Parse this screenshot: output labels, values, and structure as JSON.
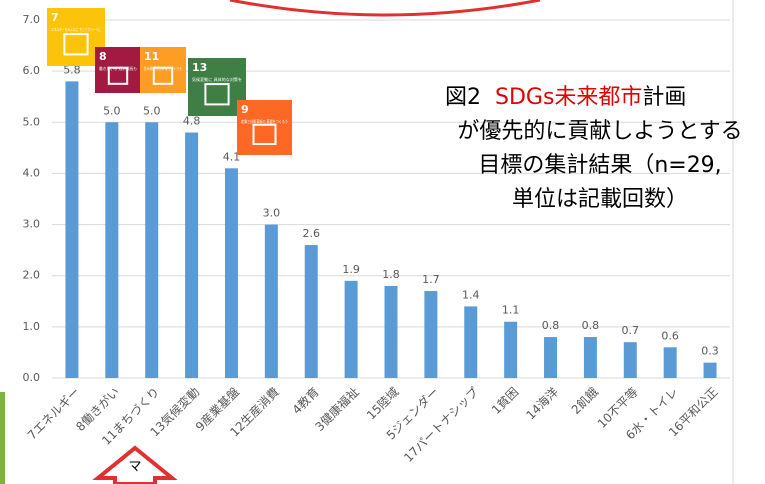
{
  "chart_data": {
    "type": "bar",
    "title": {
      "prefix": "図2",
      "highlight": "SDGs未来都市",
      "suffix": "計画",
      "lines": [
        "が優先的に貢献しようとする",
        "目標の集計結果（n=29,",
        "単位は記載回数）"
      ]
    },
    "categories": [
      "7エネルギー",
      "8働きがい",
      "11まちづくり",
      "13気候変動",
      "9産業基盤",
      "12生産消費",
      "4教育",
      "3健康福祉",
      "15陸域",
      "5ジェンダー",
      "17パートナシップ",
      "1貧困",
      "14海洋",
      "2飢餓",
      "10不平等",
      "6水・トイレ",
      "16平和公正"
    ],
    "values": [
      5.8,
      5.0,
      5.0,
      4.8,
      4.1,
      3.0,
      2.6,
      1.9,
      1.8,
      1.7,
      1.4,
      1.1,
      0.8,
      0.8,
      0.7,
      0.6,
      0.3
    ],
    "value_labels": [
      "5.8",
      "5.0",
      "5.0",
      "4.8",
      "4.1",
      "3.0",
      "2.6",
      "1.9",
      "1.8",
      "1.7",
      "1.4",
      "1.1",
      "0.8",
      "0.8",
      "0.7",
      "0.6",
      "0.3"
    ],
    "color": "#5b9bd5",
    "ylim": [
      0,
      7
    ],
    "yticks": [
      {
        "value": 0,
        "label": "0.0"
      },
      {
        "value": 1,
        "label": "1.0"
      },
      {
        "value": 2,
        "label": "2.0"
      },
      {
        "value": 3,
        "label": "3.0"
      },
      {
        "value": 4,
        "label": "4.0"
      },
      {
        "value": 5,
        "label": "5.0"
      },
      {
        "value": 6,
        "label": "6.0"
      },
      {
        "value": 7,
        "label": "7.0"
      }
    ],
    "grid": true,
    "icons": [
      {
        "number": "7",
        "text": "エネルギーをみんなに そしてクリーンに",
        "color": "#fcc30b"
      },
      {
        "number": "8",
        "text": "働きがいも 経済成長も",
        "color": "#a21942"
      },
      {
        "number": "11",
        "text": "住み続けられる まちづくりを",
        "color": "#fd9d24"
      },
      {
        "number": "13",
        "text": "気候変動に 具体的な対策を",
        "color": "#3f7e44"
      },
      {
        "number": "9",
        "text": "産業と技術革新の 基盤をつくろう",
        "color": "#fd6925"
      }
    ],
    "arrow_text": "マ"
  }
}
